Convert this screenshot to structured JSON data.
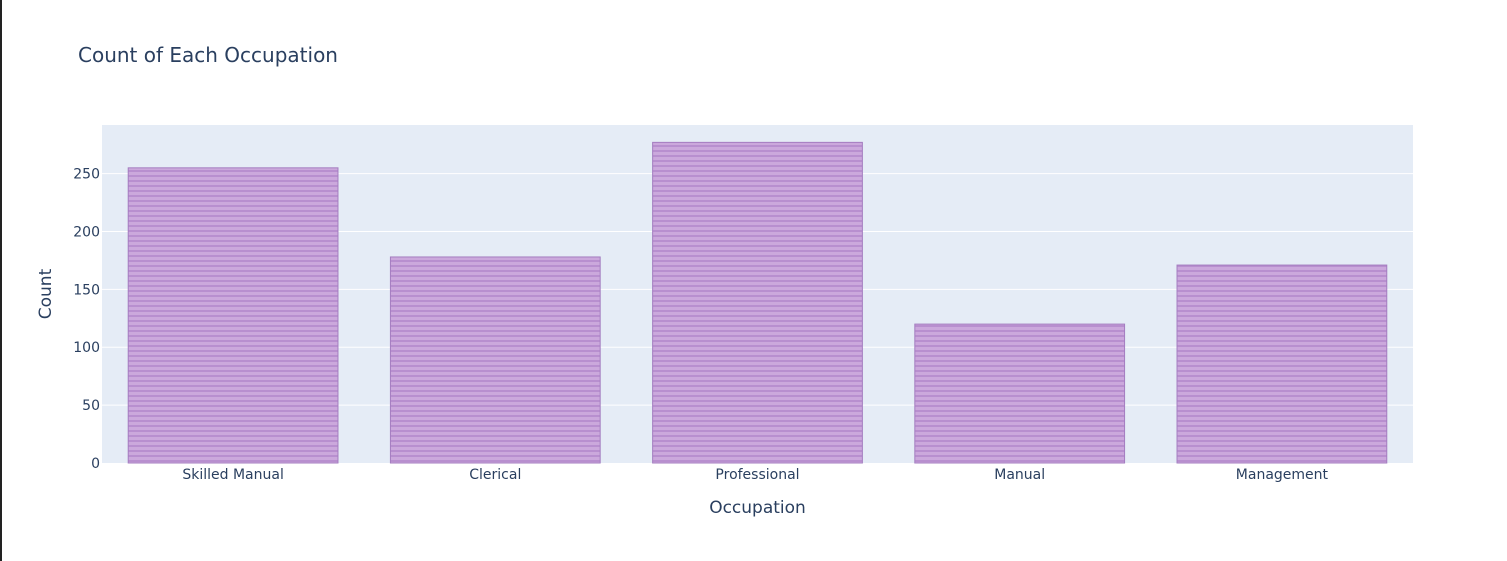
{
  "chart_data": {
    "type": "bar",
    "title": "Count of Each Occupation",
    "xlabel": "Occupation",
    "ylabel": "Count",
    "categories": [
      "Skilled Manual",
      "Clerical",
      "Professional",
      "Manual",
      "Management"
    ],
    "values": [
      255,
      178,
      277,
      120,
      171
    ],
    "ylim": [
      0,
      292
    ],
    "yticks": [
      0,
      50,
      100,
      150,
      200,
      250
    ],
    "grid": true,
    "legend": "none",
    "colors": {
      "plot_background": "#E5ECF6",
      "grid": "#ffffff",
      "bar_fill": "#cba8dc",
      "bar_stripe": "#b88fcf",
      "bar_outline": "#a47dc0",
      "text": "#2a3f5f"
    }
  }
}
